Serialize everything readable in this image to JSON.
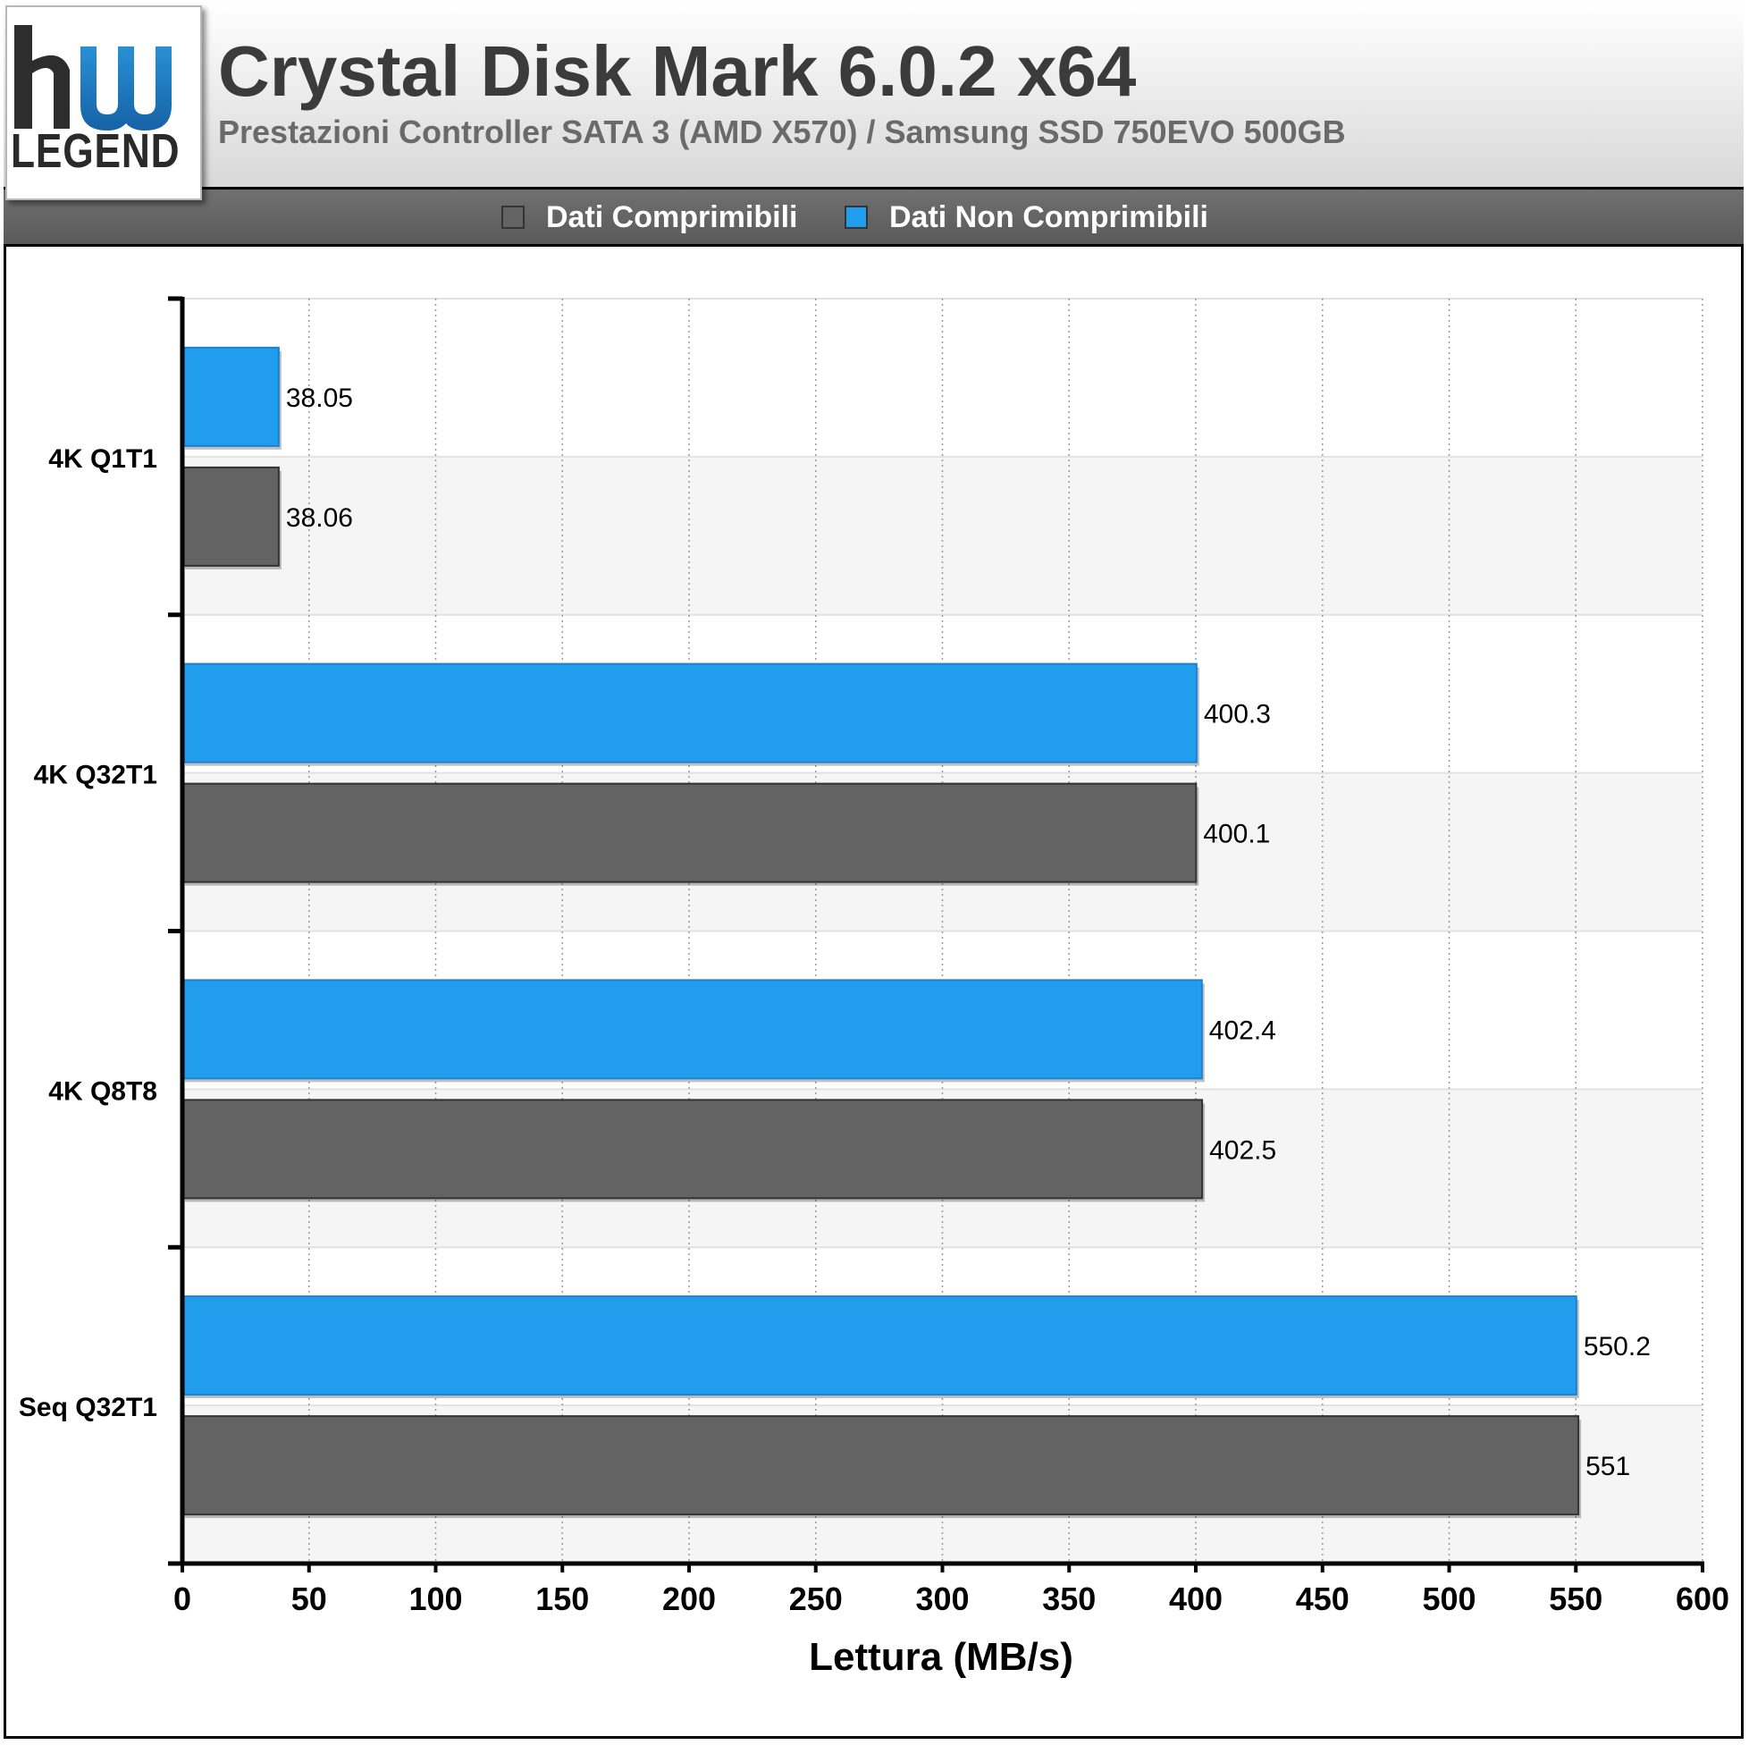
{
  "header": {
    "logo_text": "LEGEND",
    "title": "Crystal Disk Mark 6.0.2 x64",
    "subtitle": "Prestazioni Controller SATA 3 (AMD X570) / Samsung SSD 750EVO 500GB"
  },
  "legend": {
    "items": [
      {
        "label": "Dati Comprimibili",
        "color": "#636363"
      },
      {
        "label": "Dati Non Comprimibili",
        "color": "#219ded"
      }
    ]
  },
  "colors": {
    "compressible": "#636363",
    "non_compressible": "#219ded",
    "band_alt": "#f5f5f5"
  },
  "chart_data": {
    "type": "bar",
    "orientation": "horizontal",
    "categories": [
      "4K Q1T1",
      "4K Q32T1",
      "4K Q8T8",
      "Seq Q32T1"
    ],
    "series": [
      {
        "name": "Dati Non Comprimibili",
        "values": [
          38.05,
          400.3,
          402.4,
          550.2
        ]
      },
      {
        "name": "Dati Comprimibili",
        "values": [
          38.06,
          400.1,
          402.5,
          551
        ]
      }
    ],
    "value_labels": {
      "Dati Non Comprimibili": [
        "38.05",
        "400.3",
        "402.4",
        "550.2"
      ],
      "Dati Comprimibili": [
        "38.06",
        "400.1",
        "402.5",
        "551"
      ]
    },
    "xlabel": "Lettura (MB/s)",
    "xlim": [
      0,
      600
    ],
    "xticks": [
      0,
      50,
      100,
      150,
      200,
      250,
      300,
      350,
      400,
      450,
      500,
      550,
      600
    ],
    "grid": true,
    "legend_position": "top"
  }
}
